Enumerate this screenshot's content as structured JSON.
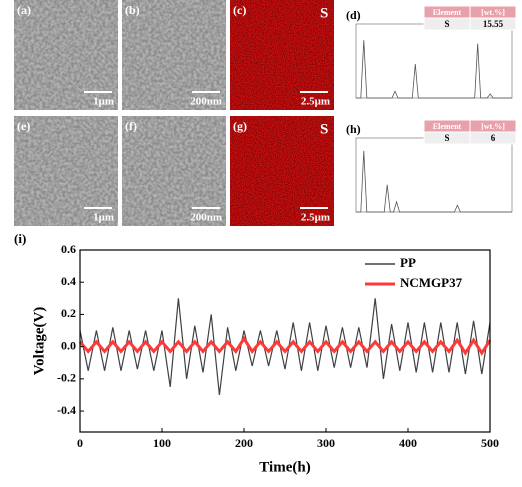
{
  "panels": [
    {
      "label": "(a)",
      "scale_bar": "1μm",
      "kind": "sem"
    },
    {
      "label": "(b)",
      "scale_bar": "200nm",
      "kind": "sem"
    },
    {
      "label": "(c)",
      "scale_bar": "2.5μm",
      "kind": "map",
      "element": "S"
    },
    {
      "label": "(e)",
      "scale_bar": "1μm",
      "kind": "sem"
    },
    {
      "label": "(f)",
      "scale_bar": "200nm",
      "kind": "sem"
    },
    {
      "label": "(g)",
      "scale_bar": "2.5μm",
      "kind": "map",
      "element": "S"
    }
  ],
  "eds": [
    {
      "label": "(d)",
      "table": {
        "header": [
          "Element",
          "[wt.%]"
        ],
        "row": [
          "S",
          15.55
        ]
      }
    },
    {
      "label": "(h)",
      "table": {
        "header": [
          "Element",
          "[wt.%]"
        ],
        "row": [
          "S",
          6
        ]
      }
    }
  ],
  "chart_data": {
    "type": "line",
    "title": "(i)",
    "xlabel": "Time(h)",
    "ylabel": "Voltage(V)",
    "x": [
      0,
      10,
      20,
      30,
      40,
      50,
      60,
      70,
      80,
      90,
      100,
      110,
      120,
      130,
      140,
      150,
      160,
      170,
      180,
      190,
      200,
      210,
      220,
      230,
      240,
      250,
      260,
      270,
      280,
      290,
      300,
      310,
      320,
      330,
      340,
      350,
      360,
      370,
      380,
      390,
      400,
      410,
      420,
      430,
      440,
      450,
      460,
      470,
      480,
      490,
      500
    ],
    "series": [
      {
        "name": "PP",
        "color": "#404040",
        "values": [
          0.1,
          -0.15,
          0.1,
          -0.15,
          0.12,
          -0.15,
          0.1,
          -0.14,
          0.1,
          -0.15,
          0.1,
          -0.25,
          0.3,
          -0.2,
          0.13,
          -0.16,
          0.2,
          -0.3,
          0.12,
          -0.15,
          0.1,
          -0.12,
          0.1,
          -0.12,
          0.1,
          -0.14,
          0.15,
          -0.15,
          0.15,
          -0.15,
          0.13,
          -0.13,
          0.12,
          -0.13,
          0.12,
          -0.13,
          0.3,
          -0.2,
          0.14,
          -0.15,
          0.15,
          -0.16,
          0.15,
          -0.16,
          0.15,
          -0.16,
          0.15,
          -0.17,
          0.16,
          -0.17,
          0.15
        ]
      },
      {
        "name": "NCMGP37",
        "color": "#ff3838",
        "values": [
          0.03,
          -0.03,
          0.03,
          -0.03,
          0.03,
          -0.03,
          0.03,
          -0.03,
          0.03,
          -0.03,
          0.03,
          -0.03,
          0.03,
          -0.03,
          0.03,
          -0.03,
          0.03,
          -0.03,
          0.03,
          -0.03,
          0.05,
          -0.03,
          0.03,
          -0.03,
          0.03,
          -0.03,
          0.03,
          -0.03,
          0.03,
          -0.03,
          0.03,
          -0.03,
          0.03,
          -0.03,
          0.03,
          -0.03,
          0.03,
          -0.03,
          0.03,
          -0.03,
          0.03,
          -0.03,
          0.03,
          -0.03,
          0.03,
          -0.03,
          0.04,
          -0.04,
          0.04,
          -0.04,
          0.04
        ]
      }
    ],
    "xlim": [
      0,
      500
    ],
    "xticks": [
      0,
      100,
      200,
      300,
      400,
      500
    ],
    "ylim": [
      -0.53,
      0.6
    ],
    "yticks": [
      -0.4,
      -0.2,
      {
        "value": 0,
        "label": "0.0"
      },
      0.2,
      0.4,
      0.6
    ],
    "legend": "upper-right"
  }
}
